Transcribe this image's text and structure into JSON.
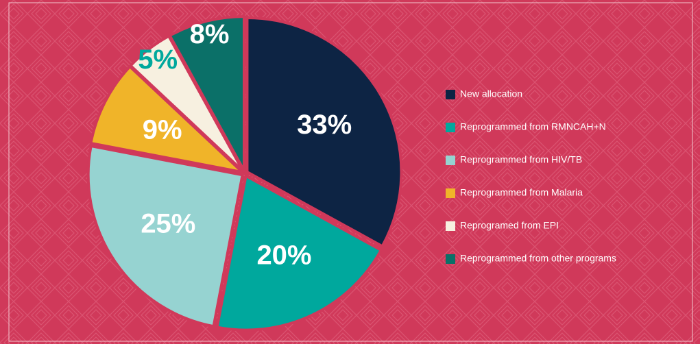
{
  "chart_data": {
    "type": "pie",
    "categories": [
      "New allocation",
      "Reprogrammed from RMNCAH+N",
      "Reprogrammed from HIV/TB",
      "Reprogrammed from Malaria",
      "Reprogramed from EPI",
      "Reprogrammed from other programs"
    ],
    "values": [
      33,
      20,
      25,
      9,
      5,
      8
    ],
    "value_labels": [
      "33%",
      "20%",
      "25%",
      "9%",
      "5%",
      "8%"
    ],
    "colors": [
      "#0d2444",
      "#00a89d",
      "#96d3d1",
      "#f0b429",
      "#f7f0e0",
      "#0b7068"
    ],
    "label_colors": [
      "#ffffff",
      "#ffffff",
      "#ffffff",
      "#ffffff",
      "#00a89d",
      "#ffffff"
    ],
    "legend": "right"
  }
}
